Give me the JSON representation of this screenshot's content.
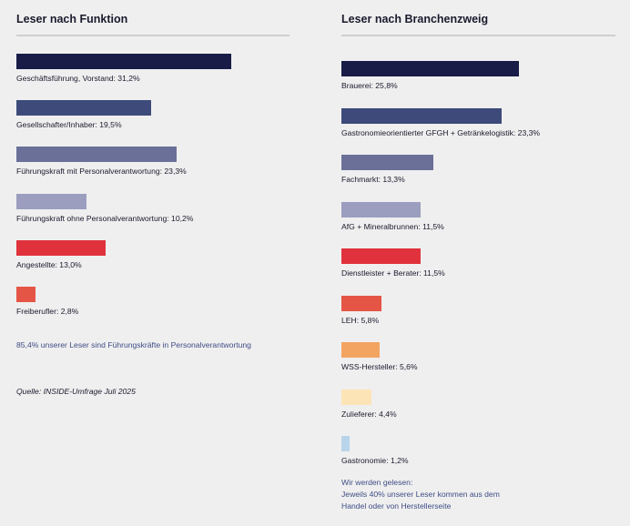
{
  "chart_data": [
    {
      "type": "bar",
      "orientation": "horizontal",
      "title": "Leser nach Funktion",
      "unit": "%",
      "categories": [
        "Geschäftsführung, Vorstand",
        "Gesellschafter/Inhaber",
        "Führungskraft mit Personalverantwortung",
        "Führungskraft ohne Personalverantwortung",
        "Angestellte",
        "Freiberufler"
      ],
      "values": [
        31.2,
        19.5,
        23.3,
        10.2,
        13.0,
        2.8
      ],
      "labels": [
        "Geschäftsführung, Vorstand: 31,2%",
        "Gesellschafter/Inhaber: 19,5%",
        "Führungskraft mit Personalverantwortung: 23,3%",
        "Führungskraft ohne Personalverantwortung: 10,2%",
        "Angestellte: 13,0%",
        "Freiberufler: 2,8%"
      ],
      "colors": [
        "#181c47",
        "#3d4a7a",
        "#6a7098",
        "#9b9ebf",
        "#e0323c",
        "#e55545"
      ],
      "xlim": [
        0,
        31.2
      ],
      "grid": false,
      "note": "85,4% unserer Leser sind Führungskräfte in Personalverantwortung",
      "source": "Quelle: INSIDE-Umfrage Juli 2025"
    },
    {
      "type": "bar",
      "orientation": "horizontal",
      "title": "Leser nach Branchenzweig",
      "unit": "%",
      "categories": [
        "Brauerei",
        "Gastronomieorientierter GFGH + Getränkelogistik",
        "Fachmarkt",
        "AfG + Mineralbrunnen",
        "Dienstleister + Berater",
        "LEH",
        "WSS-Hersteller",
        "Zulieferer",
        "Gastronomie"
      ],
      "values": [
        25.8,
        23.3,
        13.3,
        11.5,
        11.5,
        5.8,
        5.6,
        4.4,
        1.2
      ],
      "labels": [
        "Brauerei: 25,8%",
        "Gastronomieorientierter GFGH + Getränkelogistik: 23,3%",
        "Fachmarkt: 13,3%",
        "AfG + Mineralbrunnen: 11,5%",
        "Dienstleister + Berater: 11,5%",
        "LEH: 5,8%",
        "WSS-Hersteller: 5,6%",
        "Zulieferer: 4,4%",
        "Gastronomie: 1,2%"
      ],
      "colors": [
        "#181c47",
        "#3d4a7a",
        "#6a7098",
        "#9b9ebf",
        "#e0323c",
        "#e55545",
        "#f4a461",
        "#fde4b6",
        "#b8d4ea"
      ],
      "xlim": [
        0,
        25.8
      ],
      "grid": false,
      "note_lines": [
        "Wir werden gelesen:",
        "Jeweils 40% unserer Leser kommen aus dem",
        "Handel oder von Herstellerseite"
      ]
    }
  ]
}
